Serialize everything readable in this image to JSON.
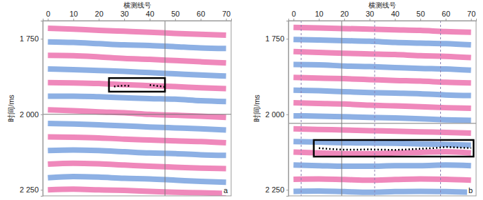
{
  "chart_data": [
    {
      "type": "line",
      "label": "a",
      "x_label": "横测线号",
      "y_label": "时间/ms",
      "x": [
        0,
        10,
        20,
        30,
        40,
        50,
        60,
        70
      ],
      "xlim": [
        -2,
        72
      ],
      "xticks": [
        0,
        10,
        20,
        30,
        40,
        50,
        60,
        70
      ],
      "ylim": [
        1690,
        2270
      ],
      "yticks": [
        {
          "value": 1750,
          "label": "1 750"
        },
        {
          "value": 2000,
          "label": "2 000"
        },
        {
          "value": 2250,
          "label": "2 250"
        }
      ],
      "series": [
        {
          "color": "#e8559e",
          "values": [
            1715,
            1718,
            1722,
            1725,
            1728,
            1732,
            1735,
            1738
          ]
        },
        {
          "color": "#5d8ed8",
          "values": [
            1760,
            1762,
            1766,
            1770,
            1772,
            1776,
            1780,
            1782
          ]
        },
        {
          "color": "#e8559e",
          "values": [
            1805,
            1806,
            1810,
            1815,
            1818,
            1822,
            1826,
            1830
          ]
        },
        {
          "color": "#5d8ed8",
          "values": [
            1850,
            1852,
            1855,
            1858,
            1862,
            1866,
            1870,
            1873
          ]
        },
        {
          "color": "#e8559e",
          "values": [
            1895,
            1896,
            1898,
            1902,
            1905,
            1908,
            1912,
            1915
          ]
        },
        {
          "color": "#5d8ed8",
          "values": [
            1940,
            1940,
            1942,
            1945,
            1948,
            1950,
            1955,
            1958
          ]
        },
        {
          "color": "#e8559e",
          "values": [
            1985,
            1988,
            1992,
            1995,
            2000,
            2003,
            2006,
            2010
          ]
        },
        {
          "color": "#5d8ed8",
          "values": [
            2030,
            2032,
            2035,
            2038,
            2042,
            2045,
            2048,
            2052
          ]
        },
        {
          "color": "#e8559e",
          "values": [
            2075,
            2076,
            2078,
            2082,
            2085,
            2088,
            2090,
            2094
          ]
        },
        {
          "color": "#5d8ed8",
          "values": [
            2120,
            2118,
            2120,
            2124,
            2128,
            2130,
            2134,
            2136
          ]
        },
        {
          "color": "#e8559e",
          "values": [
            2165,
            2162,
            2164,
            2168,
            2172,
            2175,
            2178,
            2180
          ]
        },
        {
          "color": "#5d8ed8",
          "values": [
            2210,
            2206,
            2208,
            2212,
            2214,
            2218,
            2222,
            2225
          ]
        },
        {
          "color": "#e8559e",
          "values": [
            2250,
            2248,
            2250,
            2252,
            2255,
            2258,
            2260,
            2262
          ]
        }
      ],
      "crosshair": {
        "x": 46,
        "y": 2000
      },
      "box": {
        "x": [
          24,
          46
        ],
        "y": [
          1880,
          1925
        ]
      },
      "picks": [
        {
          "x": [
            26,
            28,
            30,
            32
          ],
          "y": [
            1908,
            1906,
            1905,
            1906
          ]
        },
        {
          "x": [
            40,
            42,
            44,
            46
          ],
          "y": [
            1903,
            1905,
            1907,
            1909
          ]
        }
      ]
    },
    {
      "type": "line",
      "label": "b",
      "x_label": "横测线号",
      "y_label": "时间/ms",
      "x": [
        0,
        10,
        20,
        30,
        40,
        50,
        60,
        70
      ],
      "xlim": [
        -2,
        72
      ],
      "xticks": [
        0,
        10,
        20,
        30,
        40,
        50,
        60,
        70
      ],
      "ylim": [
        1690,
        2270
      ],
      "yticks": [
        {
          "value": 1750,
          "label": "1 750"
        },
        {
          "value": 2000,
          "label": "2 000"
        },
        {
          "value": 2250,
          "label": "2 250"
        }
      ],
      "series": [
        {
          "color": "#e8559e",
          "values": [
            1712,
            1714,
            1716,
            1718,
            1720,
            1722,
            1726,
            1728
          ]
        },
        {
          "color": "#5d8ed8",
          "values": [
            1752,
            1754,
            1756,
            1758,
            1762,
            1764,
            1766,
            1770
          ]
        },
        {
          "color": "#e8559e",
          "values": [
            1792,
            1795,
            1798,
            1800,
            1802,
            1806,
            1808,
            1812
          ]
        },
        {
          "color": "#5d8ed8",
          "values": [
            1835,
            1836,
            1840,
            1842,
            1845,
            1848,
            1850,
            1854
          ]
        },
        {
          "color": "#e8559e",
          "values": [
            1878,
            1880,
            1882,
            1885,
            1888,
            1890,
            1894,
            1896
          ]
        },
        {
          "color": "#5d8ed8",
          "values": [
            1920,
            1922,
            1925,
            1928,
            1930,
            1932,
            1936,
            1938
          ]
        },
        {
          "color": "#e8559e",
          "values": [
            1962,
            1964,
            1966,
            1970,
            1972,
            1975,
            1978,
            1980
          ]
        },
        {
          "color": "#5d8ed8",
          "values": [
            2005,
            2006,
            2008,
            2010,
            2012,
            2015,
            2018,
            2020
          ]
        },
        {
          "color": "#e8559e",
          "values": [
            2048,
            2050,
            2052,
            2054,
            2056,
            2058,
            2060,
            2062
          ]
        },
        {
          "color": "#5d8ed8",
          "values": [
            2090,
            2092,
            2094,
            2095,
            2096,
            2098,
            2100,
            2102
          ]
        },
        {
          "color": "#e8559e",
          "values": [
            2125,
            2128,
            2130,
            2130,
            2128,
            2126,
            2124,
            2128
          ]
        },
        {
          "color": "#5d8ed8",
          "values": [
            2168,
            2170,
            2172,
            2172,
            2170,
            2170,
            2168,
            2170
          ]
        },
        {
          "color": "#e8559e",
          "values": [
            2215,
            2214,
            2216,
            2218,
            2216,
            2214,
            2215,
            2218
          ]
        },
        {
          "color": "#5d8ed8",
          "values": [
            2255,
            2254,
            2256,
            2258,
            2256,
            2255,
            2256,
            2258
          ]
        }
      ],
      "crosshair": {
        "x": 19,
        "y": 2030
      },
      "dashed_x": [
        3,
        32,
        58
      ],
      "box": {
        "x": [
          8,
          71
        ],
        "y": [
          2085,
          2140
        ]
      },
      "picks": [
        {
          "x": [
            10,
            15,
            20,
            25,
            30,
            35,
            40,
            45,
            50,
            55,
            60,
            65,
            70
          ],
          "y": [
            2112,
            2115,
            2117,
            2117,
            2116,
            2117,
            2118,
            2116,
            2114,
            2112,
            2108,
            2110,
            2112
          ]
        }
      ]
    }
  ]
}
